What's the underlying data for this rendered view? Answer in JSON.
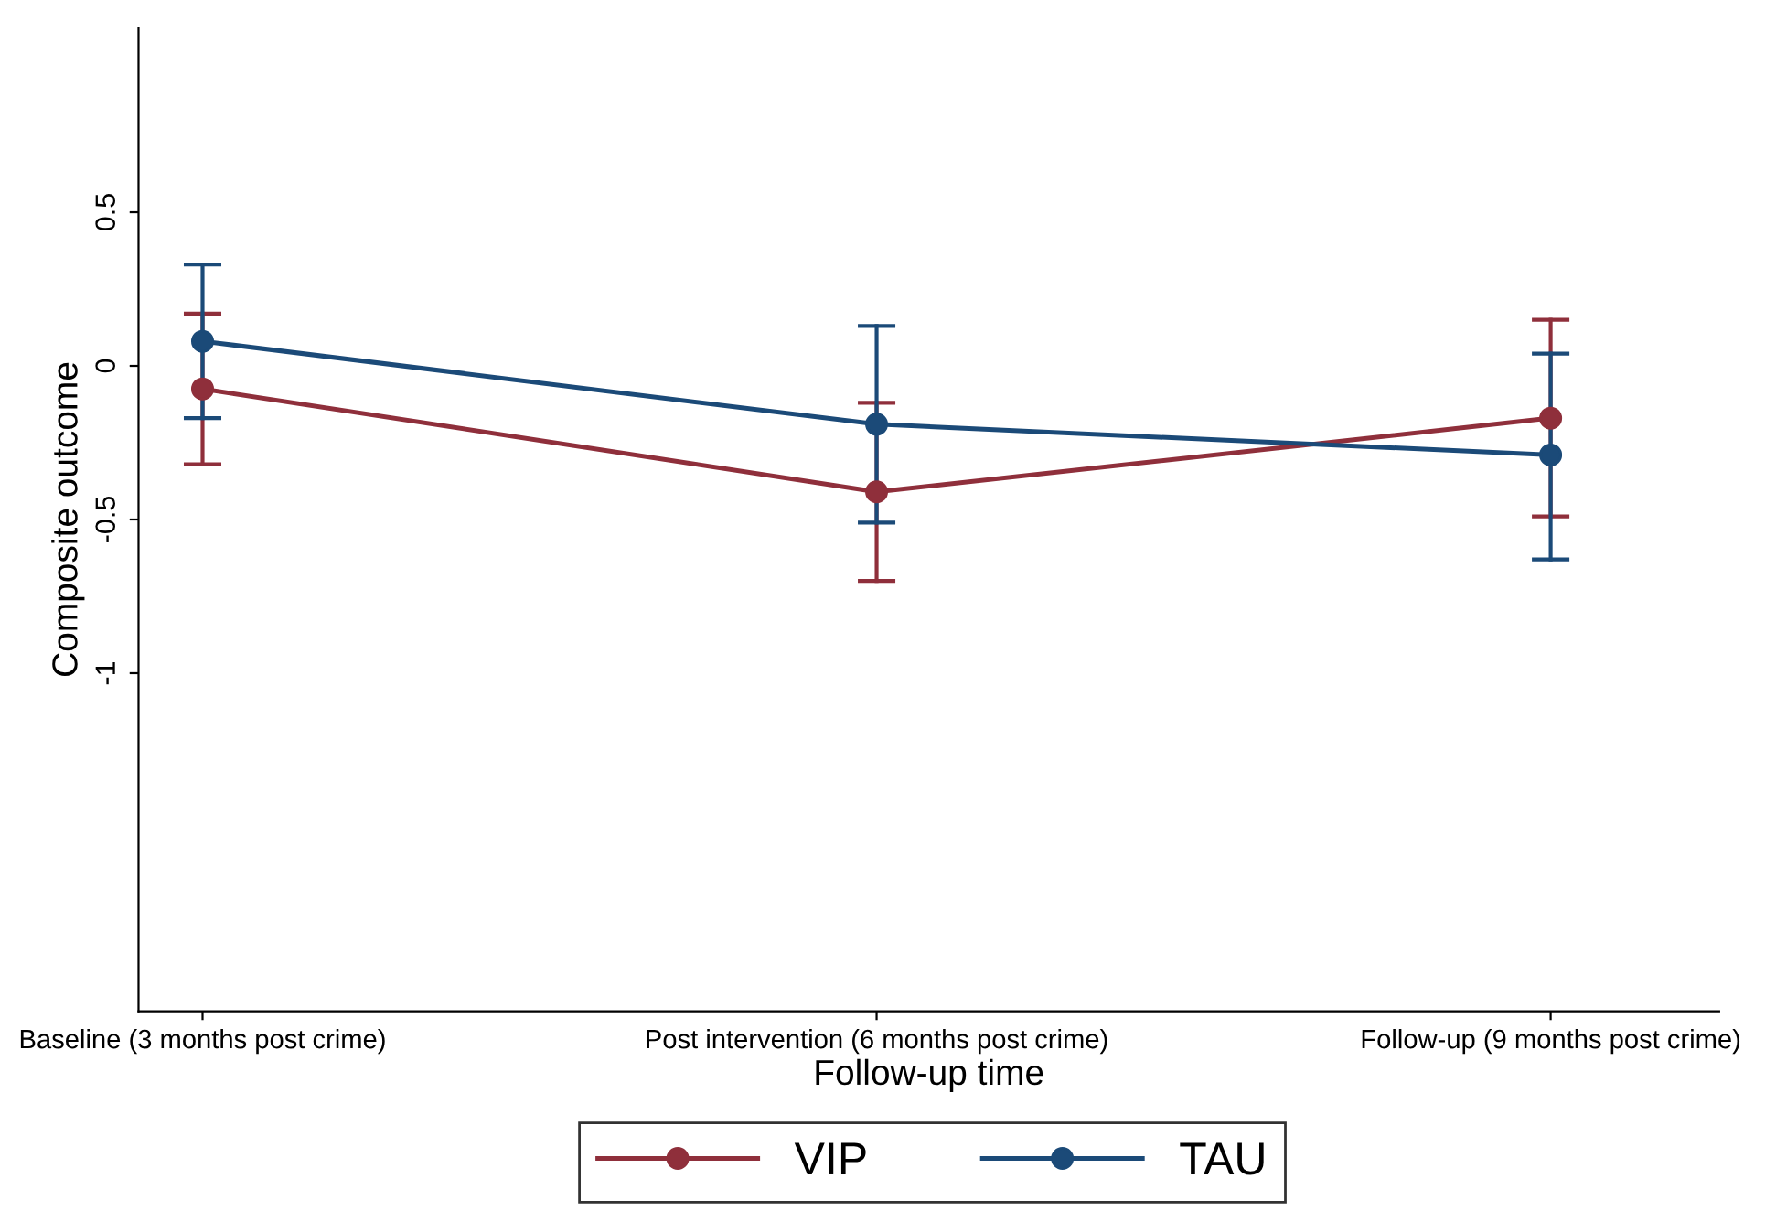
{
  "chart_data": {
    "type": "line",
    "xlabel": "Follow-up time",
    "ylabel": "Composite outcome",
    "categories": [
      "Baseline (3 months post crime)",
      "Post intervention (6 months post crime)",
      "Follow-up (9 months post crime)"
    ],
    "series": [
      {
        "name": "VIP",
        "color": "#8f2f3b",
        "values": [
          -0.075,
          -0.41,
          -0.17
        ],
        "errors": [
          [
            -0.32,
            0.17
          ],
          [
            -0.7,
            -0.12
          ],
          [
            -0.49,
            0.15
          ]
        ]
      },
      {
        "name": "TAU",
        "color": "#1b4a78",
        "values": [
          0.08,
          -0.19,
          -0.29
        ],
        "errors": [
          [
            -0.17,
            0.33
          ],
          [
            -0.51,
            0.13
          ],
          [
            -0.63,
            0.04
          ]
        ]
      }
    ],
    "ylim": [
      -2.1,
      1.1
    ],
    "yticks": [
      {
        "value": -1,
        "label": "-1"
      },
      {
        "value": -0.5,
        "label": "-0.5"
      },
      0,
      0.5
    ],
    "marker": "circle",
    "line_style": "solid",
    "grid": false,
    "legend": "bottom"
  }
}
